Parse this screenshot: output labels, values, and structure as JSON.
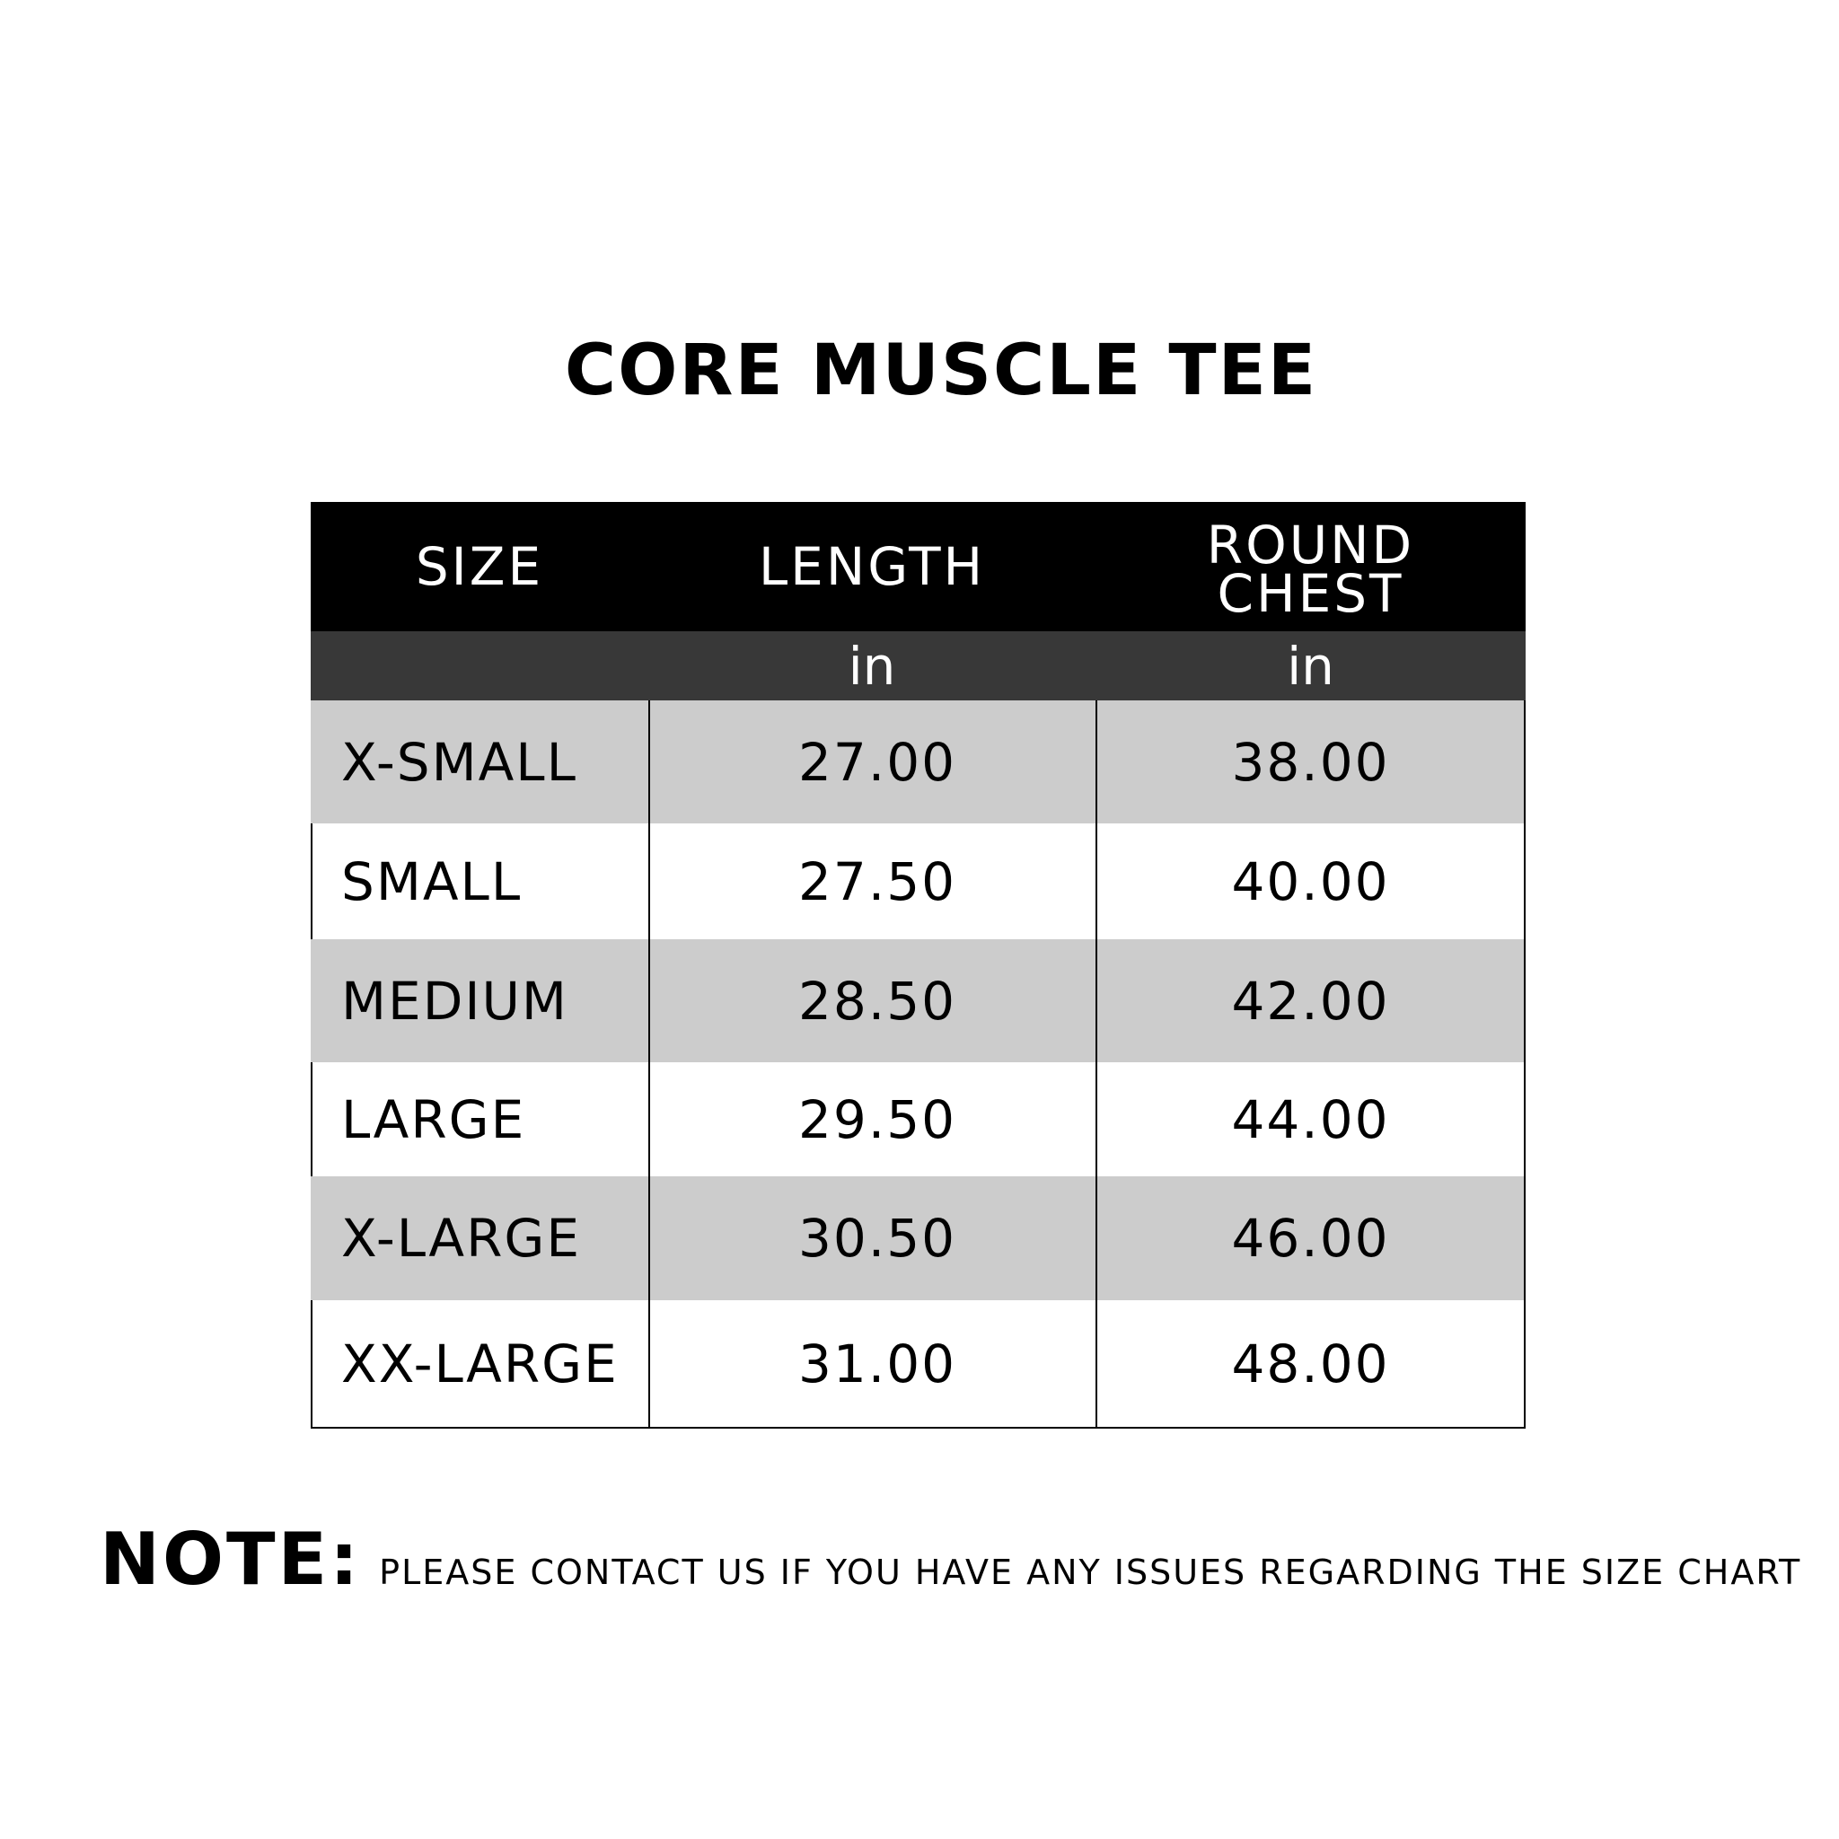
{
  "title": "CORE MUSCLE TEE",
  "table": {
    "headers": [
      "SIZE",
      "LENGTH",
      "ROUND\nCHEST"
    ],
    "units": [
      "",
      "in",
      "in"
    ],
    "rows": [
      {
        "size": "X-SMALL",
        "length": "27.00",
        "chest": "38.00"
      },
      {
        "size": "SMALL",
        "length": "27.50",
        "chest": "40.00"
      },
      {
        "size": "MEDIUM",
        "length": "28.50",
        "chest": "42.00"
      },
      {
        "size": "LARGE",
        "length": "29.50",
        "chest": "44.00"
      },
      {
        "size": "X-LARGE",
        "length": "30.50",
        "chest": "46.00"
      },
      {
        "size": "XX-LARGE",
        "length": "31.00",
        "chest": "48.00"
      }
    ]
  },
  "note": {
    "label": "NOTE:",
    "text": "PLEASE CONTACT US IF YOU HAVE ANY ISSUES REGARDING THE SIZE CHART"
  },
  "colors": {
    "header": "#000000",
    "subheader": "#383838",
    "stripe": "#cccccc"
  }
}
